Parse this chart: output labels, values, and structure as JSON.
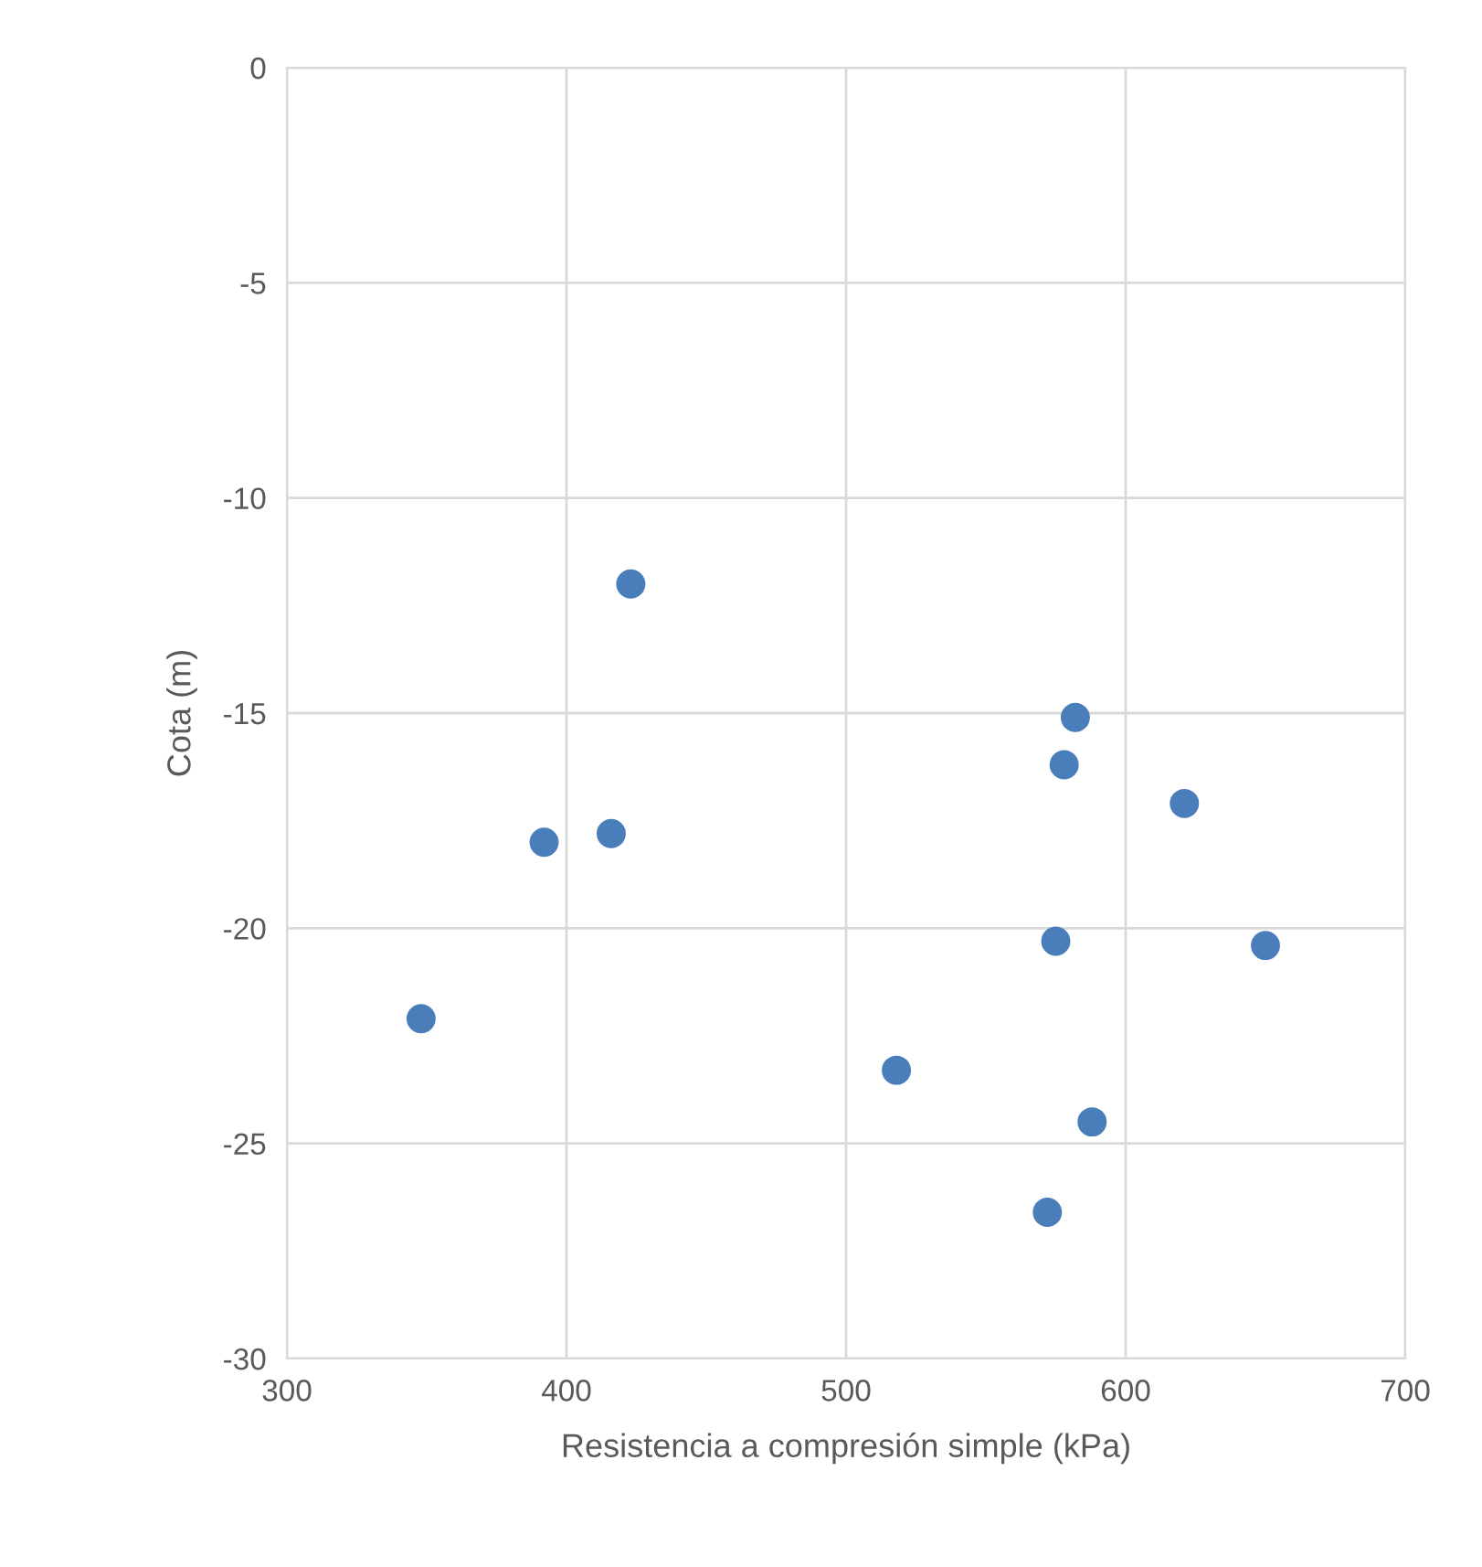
{
  "chart_data": {
    "type": "scatter",
    "xlabel": "Resistencia a compresión simple (kPa)",
    "ylabel": "Cota (m)",
    "x": [
      423,
      582,
      578,
      621,
      392,
      416,
      575,
      650,
      348,
      518,
      588,
      572
    ],
    "series": [
      {
        "color": "#4a7ebb",
        "values": [
          -12.0,
          -15.1,
          -16.2,
          -17.1,
          -18.0,
          -17.8,
          -20.3,
          -20.4,
          -22.1,
          -23.3,
          -24.5,
          -26.6
        ]
      }
    ],
    "xlim": [
      300,
      700
    ],
    "xticks": [
      300,
      400,
      500,
      600,
      700
    ],
    "ylim": [
      -30,
      0
    ],
    "yticks": [
      0,
      -5,
      -10,
      -15,
      -20,
      -25,
      -30
    ],
    "grid": true,
    "marker": "circle",
    "legend": false
  }
}
